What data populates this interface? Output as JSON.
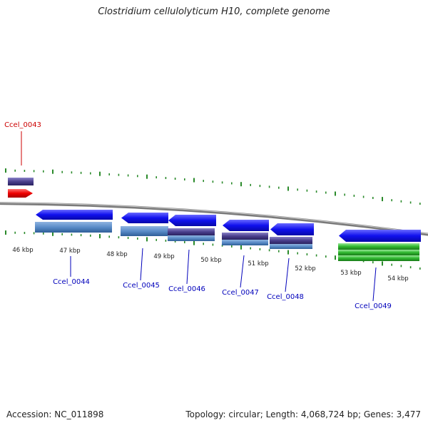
{
  "title": "Clostridium cellulolyticum H10, complete genome",
  "footer": {
    "accession": "Accession: NC_011898",
    "topology": "Topology: circular",
    "length": "Length: 4,068,724 bp",
    "genes": "Genes: 3,477"
  },
  "genome": {
    "tick_labels": [
      "46 kbp",
      "47 kbp",
      "48 kbp",
      "49 kbp",
      "50 kbp",
      "51 kbp",
      "52 kbp",
      "53 kbp",
      "54 kbp"
    ],
    "genes": [
      {
        "label": "Ccel_0043",
        "highlighted": true
      },
      {
        "label": "Ccel_0044",
        "highlighted": false
      },
      {
        "label": "Ccel_0045",
        "highlighted": false
      },
      {
        "label": "Ccel_0046",
        "highlighted": false
      },
      {
        "label": "Ccel_0047",
        "highlighted": false
      },
      {
        "label": "Ccel_0048",
        "highlighted": false
      },
      {
        "label": "Ccel_0049",
        "highlighted": false
      }
    ]
  },
  "colors": {
    "highlight_label": "#cc0000",
    "gene_label": "#0000bb",
    "cds": "#1010ee",
    "gene_feature": "#5a8cc8",
    "alt_feature": "#4a3f8c",
    "rrna": "#2fb82f",
    "tick": "#2a8a2a",
    "backbone": "#8a8a8a"
  }
}
